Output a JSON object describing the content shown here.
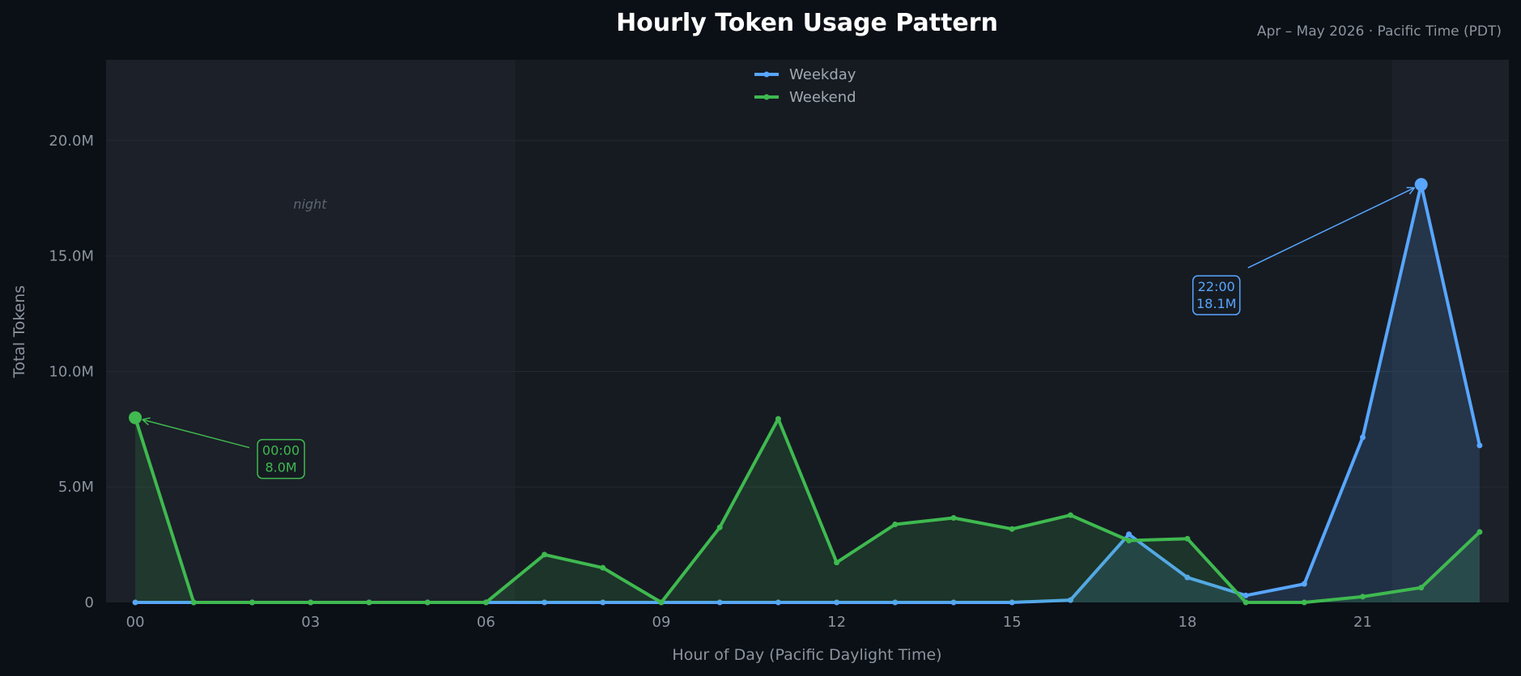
{
  "chart_data": {
    "type": "line",
    "title": "Hourly Token Usage Pattern",
    "subtitle": "Apr – May 2026  ·  Pacific Time (PDT)",
    "xlabel": "Hour of Day  (Pacific Daylight Time)",
    "ylabel": "Total Tokens",
    "x": [
      0,
      1,
      2,
      3,
      4,
      5,
      6,
      7,
      8,
      9,
      10,
      11,
      12,
      13,
      14,
      15,
      16,
      17,
      18,
      19,
      20,
      21,
      22,
      23
    ],
    "xlim": [
      -0.5,
      23.5
    ],
    "ylim": [
      0,
      20000000
    ],
    "xticks": [
      0,
      3,
      6,
      9,
      12,
      15,
      18,
      21
    ],
    "xtick_labels": [
      "00",
      "03",
      "06",
      "09",
      "12",
      "15",
      "18",
      "21"
    ],
    "yticks": [
      0,
      5000000,
      10000000,
      15000000,
      20000000
    ],
    "ytick_labels": [
      "0",
      "5.0M",
      "10.0M",
      "15.0M",
      "20.0M"
    ],
    "grid": true,
    "legend": "top-center",
    "series": [
      {
        "name": "Weekday",
        "color": "#58a6ff",
        "values": [
          0,
          0,
          0,
          0,
          0,
          0,
          0,
          0,
          0,
          0,
          0,
          0,
          0,
          0,
          0,
          0,
          100000,
          2950000,
          1080000,
          300000,
          800000,
          7150000,
          18100000,
          6800000
        ]
      },
      {
        "name": "Weekend",
        "color": "#3fb950",
        "values": [
          8000000,
          0,
          0,
          0,
          0,
          0,
          0,
          2070000,
          1500000,
          0,
          3250000,
          7950000,
          1730000,
          3380000,
          3660000,
          3180000,
          3780000,
          2680000,
          2760000,
          0,
          0,
          250000,
          640000,
          3050000
        ]
      }
    ],
    "bands": [
      {
        "label": "night",
        "from": -0.5,
        "to": 6.5
      },
      {
        "label": "",
        "from": 21.5,
        "to": 23.5
      }
    ],
    "annotations": [
      {
        "series": 1,
        "x": 0,
        "lines": [
          "00:00",
          "8.0M"
        ],
        "color": "#3fb950"
      },
      {
        "series": 0,
        "x": 22,
        "lines": [
          "22:00",
          "18.1M"
        ],
        "color": "#58a6ff"
      }
    ]
  }
}
